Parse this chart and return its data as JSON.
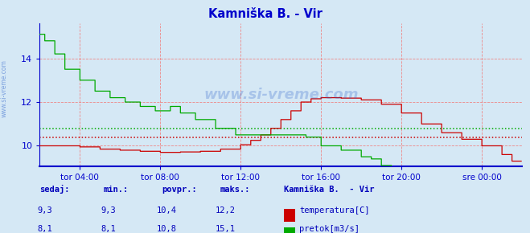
{
  "title": "Kamniška B. - Vir",
  "bg_color": "#d5e8f5",
  "plot_bg_color": "#d5e8f5",
  "grid_color": "#ee8888",
  "avg_line_red": 10.4,
  "avg_line_green": 10.8,
  "x_tick_labels": [
    "tor 04:00",
    "tor 08:00",
    "tor 12:00",
    "tor 16:00",
    "tor 20:00",
    "sre 00:00"
  ],
  "x_tick_positions": [
    48,
    144,
    240,
    336,
    432,
    528
  ],
  "ylim": [
    9.05,
    15.6
  ],
  "yticks": [
    10,
    12,
    14
  ],
  "total_points": 576,
  "temp_color": "#cc0000",
  "flow_color": "#00aa00",
  "axis_color": "#0000cc",
  "title_color": "#0000cc",
  "footer_color": "#0000bb",
  "watermark": "www.si-vreme.com",
  "legend_title": "Kamniška B.  - Vir",
  "sedaj_label": "sedaj:",
  "min_label": "min.:",
  "povpr_label": "povpr.:",
  "maks_label": "maks.:",
  "temp_sedaj": "9,3",
  "temp_min": "9,3",
  "temp_povpr": "10,4",
  "temp_maks": "12,2",
  "flow_sedaj": "8,1",
  "flow_min": "8,1",
  "flow_povpr": "10,8",
  "flow_maks": "15,1",
  "legend_temp": "temperatura[C]",
  "legend_flow": "pretok[m3/s]"
}
